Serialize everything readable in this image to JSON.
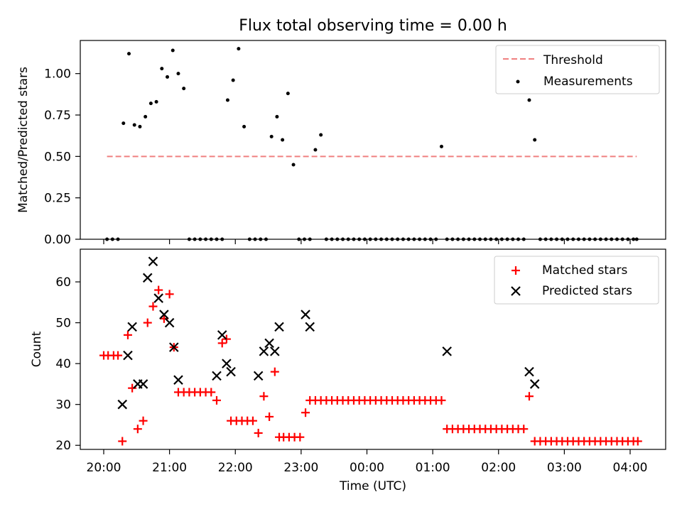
{
  "chart_data": [
    {
      "type": "scatter",
      "title": "Flux total observing time = 0.00 h",
      "xlabel": "",
      "ylabel": "Matched/Predicted stars",
      "ylim": [
        0,
        1.2
      ],
      "yticks": [
        "0.00",
        "0.25",
        "0.50",
        "0.75",
        "1.00"
      ],
      "ytick_values": [
        0,
        0.25,
        0.5,
        0.75,
        1.0
      ],
      "x_ticks_hidden": true,
      "legend": {
        "placement": "top-right",
        "entries": [
          "Threshold",
          "Measurements"
        ]
      },
      "threshold": {
        "name": "Threshold",
        "value": 0.5,
        "color": "#f08080",
        "style": "dashed",
        "x_start": "20:03",
        "x_end": "04:06"
      },
      "series": [
        {
          "name": "Measurements",
          "color": "#000000",
          "marker": "dot",
          "points": [
            [
              "20:03",
              0
            ],
            [
              "20:08",
              0
            ],
            [
              "20:13",
              0
            ],
            [
              "20:18",
              0.7
            ],
            [
              "20:23",
              1.12
            ],
            [
              "20:28",
              0.69
            ],
            [
              "20:33",
              0.68
            ],
            [
              "20:38",
              0.74
            ],
            [
              "20:43",
              0.82
            ],
            [
              "20:48",
              0.83
            ],
            [
              "20:53",
              1.03
            ],
            [
              "20:58",
              0.98
            ],
            [
              "21:03",
              1.14
            ],
            [
              "21:08",
              1.0
            ],
            [
              "21:13",
              0.91
            ],
            [
              "21:18",
              0
            ],
            [
              "21:23",
              0
            ],
            [
              "21:28",
              0
            ],
            [
              "21:33",
              0
            ],
            [
              "21:38",
              0
            ],
            [
              "21:43",
              0
            ],
            [
              "21:48",
              0
            ],
            [
              "21:53",
              0.84
            ],
            [
              "21:58",
              0.96
            ],
            [
              "22:03",
              1.15
            ],
            [
              "22:08",
              0.68
            ],
            [
              "22:13",
              0
            ],
            [
              "22:18",
              0
            ],
            [
              "22:23",
              0
            ],
            [
              "22:28",
              0
            ],
            [
              "22:33",
              0.62
            ],
            [
              "22:38",
              0.74
            ],
            [
              "22:43",
              0.6
            ],
            [
              "22:48",
              0.88
            ],
            [
              "22:53",
              0.45
            ],
            [
              "22:58",
              0
            ],
            [
              "23:03",
              0
            ],
            [
              "23:08",
              0
            ],
            [
              "23:13",
              0.54
            ],
            [
              "23:18",
              0.63
            ],
            [
              "23:23",
              0
            ],
            [
              "23:28",
              0
            ],
            [
              "23:33",
              0
            ],
            [
              "23:38",
              0
            ],
            [
              "23:43",
              0
            ],
            [
              "23:48",
              0
            ],
            [
              "23:53",
              0
            ],
            [
              "23:58",
              0
            ],
            [
              "00:03",
              0
            ],
            [
              "00:08",
              0
            ],
            [
              "00:13",
              0
            ],
            [
              "00:18",
              0
            ],
            [
              "00:23",
              0
            ],
            [
              "00:28",
              0
            ],
            [
              "00:33",
              0
            ],
            [
              "00:38",
              0
            ],
            [
              "00:43",
              0
            ],
            [
              "00:48",
              0
            ],
            [
              "00:53",
              0
            ],
            [
              "00:58",
              0
            ],
            [
              "01:03",
              0
            ],
            [
              "01:08",
              0.56
            ],
            [
              "01:13",
              0
            ],
            [
              "01:18",
              0
            ],
            [
              "01:23",
              0
            ],
            [
              "01:28",
              0
            ],
            [
              "01:33",
              0
            ],
            [
              "01:38",
              0
            ],
            [
              "01:43",
              0
            ],
            [
              "01:48",
              0
            ],
            [
              "01:53",
              0
            ],
            [
              "01:58",
              0
            ],
            [
              "02:03",
              0
            ],
            [
              "02:08",
              0
            ],
            [
              "02:13",
              0
            ],
            [
              "02:18",
              0
            ],
            [
              "02:23",
              0
            ],
            [
              "02:28",
              0.84
            ],
            [
              "02:33",
              0.6
            ],
            [
              "02:38",
              0
            ],
            [
              "02:43",
              0
            ],
            [
              "02:48",
              0
            ],
            [
              "02:53",
              0
            ],
            [
              "02:58",
              0
            ],
            [
              "03:03",
              0
            ],
            [
              "03:08",
              0
            ],
            [
              "03:13",
              0
            ],
            [
              "03:18",
              0
            ],
            [
              "03:23",
              0
            ],
            [
              "03:28",
              0
            ],
            [
              "03:33",
              0
            ],
            [
              "03:38",
              0
            ],
            [
              "03:43",
              0
            ],
            [
              "03:48",
              0
            ],
            [
              "03:53",
              0
            ],
            [
              "03:58",
              0
            ],
            [
              "04:03",
              0
            ],
            [
              "04:06",
              0
            ]
          ]
        }
      ]
    },
    {
      "type": "scatter",
      "title": "",
      "xlabel": "Time (UTC)",
      "ylabel": "Count",
      "ylim": [
        19,
        68
      ],
      "yticks": [
        "20",
        "30",
        "40",
        "50",
        "60"
      ],
      "ytick_values": [
        20,
        30,
        40,
        50,
        60
      ],
      "x_tick_labels": [
        "20:00",
        "21:00",
        "22:00",
        "23:00",
        "00:00",
        "01:00",
        "02:00",
        "03:00",
        "04:00"
      ],
      "legend": {
        "placement": "top-right",
        "entries": [
          "Matched stars",
          "Predicted stars"
        ]
      },
      "series": [
        {
          "name": "Matched stars",
          "color": "#ff0000",
          "marker": "plus",
          "points": [
            [
              "20:00",
              42
            ],
            [
              "20:04",
              42
            ],
            [
              "20:09",
              42
            ],
            [
              "20:13",
              42
            ],
            [
              "20:17",
              21
            ],
            [
              "20:22",
              47
            ],
            [
              "20:26",
              34
            ],
            [
              "20:31",
              24
            ],
            [
              "20:36",
              26
            ],
            [
              "20:40",
              50
            ],
            [
              "20:45",
              54
            ],
            [
              "20:50",
              58
            ],
            [
              "20:55",
              51
            ],
            [
              "21:00",
              57
            ],
            [
              "21:04",
              44
            ],
            [
              "21:08",
              33
            ],
            [
              "21:13",
              33
            ],
            [
              "21:18",
              33
            ],
            [
              "21:23",
              33
            ],
            [
              "21:28",
              33
            ],
            [
              "21:33",
              33
            ],
            [
              "21:38",
              33
            ],
            [
              "21:43",
              31
            ],
            [
              "21:48",
              45
            ],
            [
              "21:52",
              46
            ],
            [
              "21:56",
              26
            ],
            [
              "22:01",
              26
            ],
            [
              "22:06",
              26
            ],
            [
              "22:11",
              26
            ],
            [
              "22:16",
              26
            ],
            [
              "22:21",
              23
            ],
            [
              "22:26",
              32
            ],
            [
              "22:31",
              27
            ],
            [
              "22:36",
              38
            ],
            [
              "22:40",
              22
            ],
            [
              "22:44",
              22
            ],
            [
              "22:49",
              22
            ],
            [
              "22:54",
              22
            ],
            [
              "22:59",
              22
            ],
            [
              "23:04",
              28
            ],
            [
              "23:08",
              31
            ],
            [
              "23:13",
              31
            ],
            [
              "23:18",
              31
            ],
            [
              "23:23",
              31
            ],
            [
              "23:28",
              31
            ],
            [
              "23:33",
              31
            ],
            [
              "23:38",
              31
            ],
            [
              "23:43",
              31
            ],
            [
              "23:48",
              31
            ],
            [
              "23:53",
              31
            ],
            [
              "23:58",
              31
            ],
            [
              "00:03",
              31
            ],
            [
              "00:08",
              31
            ],
            [
              "00:13",
              31
            ],
            [
              "00:18",
              31
            ],
            [
              "00:23",
              31
            ],
            [
              "00:28",
              31
            ],
            [
              "00:33",
              31
            ],
            [
              "00:38",
              31
            ],
            [
              "00:43",
              31
            ],
            [
              "00:48",
              31
            ],
            [
              "00:53",
              31
            ],
            [
              "00:58",
              31
            ],
            [
              "01:03",
              31
            ],
            [
              "01:08",
              31
            ],
            [
              "01:13",
              24
            ],
            [
              "01:18",
              24
            ],
            [
              "01:23",
              24
            ],
            [
              "01:28",
              24
            ],
            [
              "01:33",
              24
            ],
            [
              "01:38",
              24
            ],
            [
              "01:43",
              24
            ],
            [
              "01:48",
              24
            ],
            [
              "01:53",
              24
            ],
            [
              "01:58",
              24
            ],
            [
              "02:03",
              24
            ],
            [
              "02:08",
              24
            ],
            [
              "02:13",
              24
            ],
            [
              "02:18",
              24
            ],
            [
              "02:23",
              24
            ],
            [
              "02:28",
              32
            ],
            [
              "02:33",
              21
            ],
            [
              "02:38",
              21
            ],
            [
              "02:43",
              21
            ],
            [
              "02:48",
              21
            ],
            [
              "02:53",
              21
            ],
            [
              "02:58",
              21
            ],
            [
              "03:03",
              21
            ],
            [
              "03:08",
              21
            ],
            [
              "03:13",
              21
            ],
            [
              "03:18",
              21
            ],
            [
              "03:23",
              21
            ],
            [
              "03:28",
              21
            ],
            [
              "03:33",
              21
            ],
            [
              "03:38",
              21
            ],
            [
              "03:43",
              21
            ],
            [
              "03:48",
              21
            ],
            [
              "03:53",
              21
            ],
            [
              "03:58",
              21
            ],
            [
              "04:03",
              21
            ],
            [
              "04:07",
              21
            ]
          ]
        },
        {
          "name": "Predicted stars",
          "color": "#000000",
          "marker": "x",
          "points": [
            [
              "20:17",
              30
            ],
            [
              "20:22",
              42
            ],
            [
              "20:26",
              49
            ],
            [
              "20:31",
              35
            ],
            [
              "20:36",
              35
            ],
            [
              "20:40",
              61
            ],
            [
              "20:45",
              65
            ],
            [
              "20:50",
              56
            ],
            [
              "20:55",
              52
            ],
            [
              "21:00",
              50
            ],
            [
              "21:04",
              44
            ],
            [
              "21:08",
              36
            ],
            [
              "21:43",
              37
            ],
            [
              "21:48",
              47
            ],
            [
              "21:52",
              40
            ],
            [
              "21:56",
              38
            ],
            [
              "22:21",
              37
            ],
            [
              "22:26",
              43
            ],
            [
              "22:31",
              45
            ],
            [
              "22:36",
              43
            ],
            [
              "22:40",
              49
            ],
            [
              "23:04",
              52
            ],
            [
              "23:08",
              49
            ],
            [
              "01:13",
              43
            ],
            [
              "02:28",
              38
            ],
            [
              "02:33",
              35
            ]
          ]
        }
      ]
    }
  ]
}
